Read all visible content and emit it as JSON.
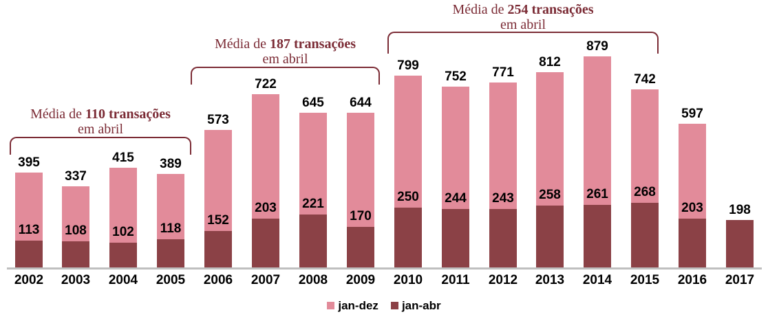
{
  "chart_data": {
    "type": "bar",
    "stacked": true,
    "title": "",
    "xlabel": "",
    "ylabel": "",
    "value_axis": {
      "min": 0,
      "max": 900,
      "axis_shown": false
    },
    "grid": false,
    "legend_position": "bottom-center",
    "categories": [
      "2002",
      "2003",
      "2004",
      "2005",
      "2006",
      "2007",
      "2008",
      "2009",
      "2010",
      "2011",
      "2012",
      "2013",
      "2014",
      "2015",
      "2016",
      "2017"
    ],
    "series": [
      {
        "name": "jan-abr",
        "color": "#8B4146",
        "values": [
          113,
          108,
          102,
          118,
          152,
          203,
          221,
          170,
          250,
          244,
          243,
          258,
          261,
          268,
          203,
          198
        ]
      },
      {
        "name": "jan-dez",
        "color": "#E28B9A",
        "values": [
          395,
          337,
          415,
          389,
          573,
          722,
          645,
          644,
          799,
          752,
          771,
          812,
          879,
          742,
          597,
          null
        ]
      }
    ],
    "annotations": [
      {
        "prefix": "Média de ",
        "bold": "110 transações",
        "line2": "em abril",
        "from": "2002",
        "to": "2005"
      },
      {
        "prefix": "Média de ",
        "bold": "187 transações",
        "line2": "em abril",
        "from": "2006",
        "to": "2009"
      },
      {
        "prefix": "Média de ",
        "bold": "254 transações",
        "line2": "em abril",
        "from": "2010",
        "to": "2015"
      }
    ]
  },
  "legend": {
    "items": [
      {
        "label": "jan-dez",
        "color": "#E28B9A"
      },
      {
        "label": "jan-abr",
        "color": "#8B4146"
      }
    ]
  },
  "colors": {
    "annotation_text": "#7B2B35",
    "bracket": "#7B2B35",
    "axis_line": "#BFBFBF",
    "value_label": "#000000"
  }
}
